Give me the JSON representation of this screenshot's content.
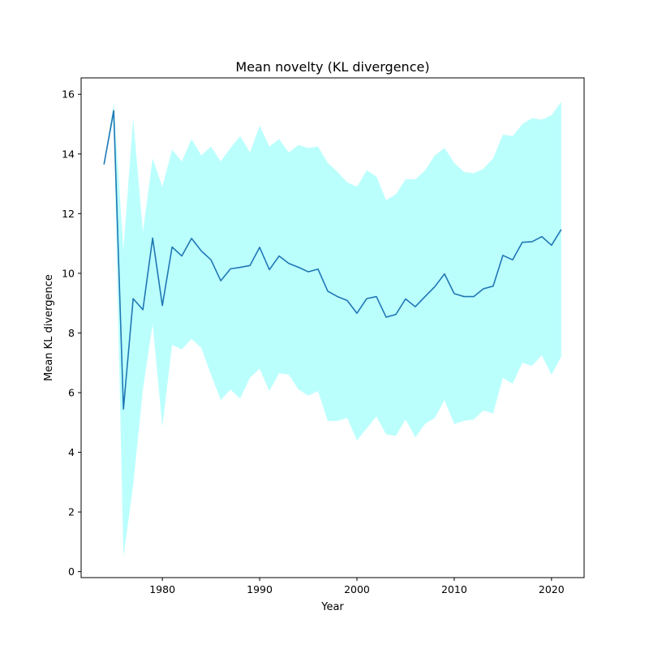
{
  "chart_data": {
    "type": "line",
    "title": "Mean novelty (KL divergence)",
    "xlabel": "Year",
    "ylabel": "Mean KL divergence",
    "xlim": [
      1971.65,
      2023.35
    ],
    "ylim": [
      -0.2,
      16.55
    ],
    "grid": false,
    "colors": {
      "line": "#1f77b4",
      "band": "#bbfffd"
    },
    "x_ticks": [
      1980,
      1990,
      2000,
      2010,
      2020
    ],
    "y_ticks": [
      0,
      2,
      4,
      6,
      8,
      10,
      12,
      14,
      16
    ],
    "x": [
      1974,
      1975,
      1976,
      1977,
      1978,
      1979,
      1980,
      1981,
      1982,
      1983,
      1984,
      1985,
      1986,
      1987,
      1988,
      1989,
      1990,
      1991,
      1992,
      1993,
      1994,
      1995,
      1996,
      1997,
      1998,
      1999,
      2000,
      2001,
      2002,
      2003,
      2004,
      2005,
      2006,
      2007,
      2008,
      2009,
      2010,
      2011,
      2012,
      2013,
      2014,
      2015,
      2016,
      2017,
      2018,
      2019,
      2020,
      2021
    ],
    "mean": [
      13.65,
      15.45,
      5.45,
      9.15,
      8.78,
      11.18,
      8.92,
      10.88,
      10.58,
      11.17,
      10.75,
      10.45,
      9.75,
      10.15,
      10.2,
      10.26,
      10.87,
      10.12,
      10.58,
      10.33,
      10.2,
      10.05,
      10.14,
      9.4,
      9.22,
      9.09,
      8.66,
      9.15,
      9.22,
      8.53,
      8.62,
      9.14,
      8.88,
      9.22,
      9.55,
      9.98,
      9.32,
      9.22,
      9.22,
      9.48,
      9.57,
      10.6,
      10.45,
      11.04,
      11.06,
      11.23,
      10.94,
      11.47
    ],
    "upper": [
      13.65,
      15.7,
      10.8,
      15.2,
      11.4,
      13.85,
      12.9,
      14.15,
      13.75,
      14.5,
      13.95,
      14.25,
      13.75,
      14.2,
      14.6,
      14.05,
      14.95,
      14.25,
      14.5,
      14.05,
      14.3,
      14.2,
      14.25,
      13.7,
      13.4,
      13.05,
      12.9,
      13.45,
      13.25,
      12.45,
      12.65,
      13.15,
      13.15,
      13.45,
      13.95,
      14.2,
      13.7,
      13.4,
      13.35,
      13.5,
      13.85,
      14.65,
      14.6,
      15.0,
      15.2,
      15.15,
      15.3,
      15.75
    ],
    "lower": [
      13.65,
      15.2,
      0.5,
      2.9,
      6.1,
      8.3,
      4.85,
      7.6,
      7.45,
      7.8,
      7.5,
      6.6,
      5.75,
      6.1,
      5.8,
      6.5,
      6.8,
      6.05,
      6.65,
      6.6,
      6.1,
      5.9,
      6.05,
      5.05,
      5.05,
      5.15,
      4.4,
      4.8,
      5.2,
      4.6,
      4.55,
      5.1,
      4.5,
      4.95,
      5.15,
      5.75,
      4.95,
      5.05,
      5.1,
      5.4,
      5.3,
      6.5,
      6.3,
      7.0,
      6.9,
      7.25,
      6.6,
      7.2
    ]
  }
}
